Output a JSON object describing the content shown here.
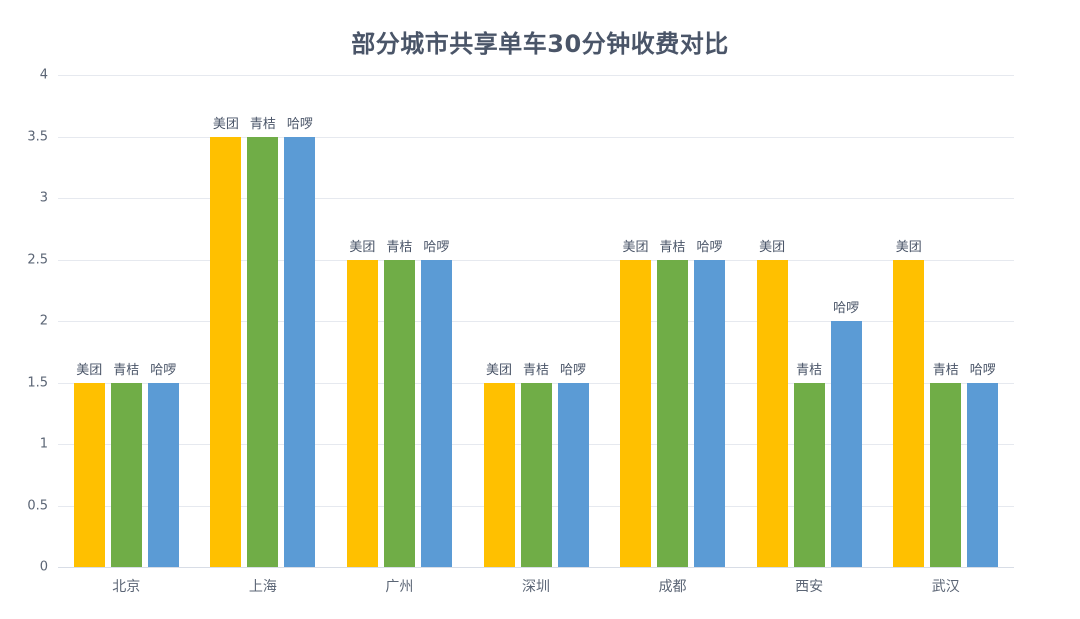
{
  "chart_data": {
    "type": "bar",
    "title": "部分城市共享单车30分钟收费对比",
    "xlabel": "",
    "ylabel": "",
    "ylim": [
      0,
      4
    ],
    "yticks": [
      "0",
      "0.5",
      "1",
      "1.5",
      "2",
      "2.5",
      "3",
      "3.5",
      "4"
    ],
    "grid": true,
    "legend": "none (series names shown as data labels above bars)",
    "categories": [
      "北京",
      "上海",
      "广州",
      "深圳",
      "成都",
      "西安",
      "武汉"
    ],
    "series": [
      {
        "name": "美团",
        "color": "#FFC000",
        "values": [
          1.5,
          3.5,
          2.5,
          1.5,
          2.5,
          2.5,
          2.5
        ]
      },
      {
        "name": "青桔",
        "color": "#70AD47",
        "values": [
          1.5,
          3.5,
          2.5,
          1.5,
          2.5,
          1.5,
          1.5
        ]
      },
      {
        "name": "哈啰",
        "color": "#5B9BD5",
        "values": [
          1.5,
          3.5,
          2.5,
          1.5,
          2.5,
          2.0,
          1.5
        ]
      }
    ]
  }
}
